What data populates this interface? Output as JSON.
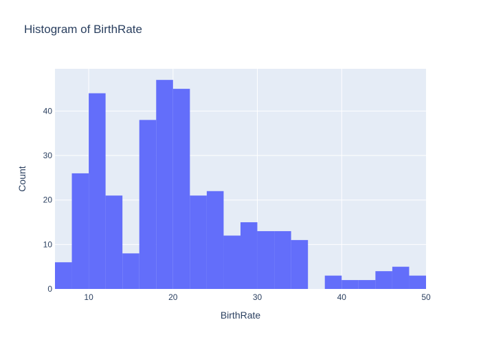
{
  "chart_data": {
    "type": "bar",
    "title": "Histogram of BirthRate",
    "xlabel": "BirthRate",
    "ylabel": "Count",
    "bin_edges": [
      6,
      8,
      10,
      12,
      14,
      16,
      18,
      20,
      22,
      24,
      26,
      28,
      30,
      32,
      34,
      36,
      38,
      40,
      42,
      44,
      46,
      48,
      50
    ],
    "values": [
      6,
      26,
      44,
      21,
      8,
      38,
      47,
      45,
      21,
      22,
      12,
      15,
      13,
      13,
      11,
      0,
      3,
      2,
      2,
      4,
      5,
      3
    ],
    "xlim": [
      6,
      50
    ],
    "ylim": [
      0,
      49.5
    ],
    "x_ticks": [
      10,
      20,
      30,
      40,
      50
    ],
    "y_ticks": [
      0,
      10,
      20,
      30,
      40
    ],
    "grid": true,
    "colors": {
      "bar": "#636efa",
      "plot_bg": "#e5ecf6",
      "grid": "#ffffff"
    }
  }
}
